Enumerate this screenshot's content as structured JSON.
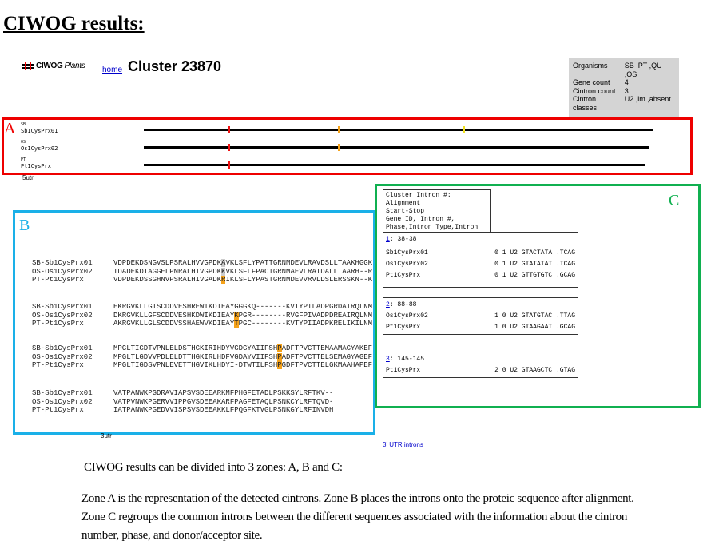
{
  "title": "CIWOG results:",
  "header": {
    "logo_text": "CIWOG",
    "logo_sub": "Plants",
    "home_link": "home",
    "cluster_title": "Cluster 23870"
  },
  "info": [
    {
      "label": "Organisms",
      "value": "SB ,PT ,QU ,OS"
    },
    {
      "label": "Gene count",
      "value": "4"
    },
    {
      "label": "Cintron count",
      "value": "3"
    },
    {
      "label": "Cintron classes",
      "value": "U2 ,im ,absent"
    }
  ],
  "zone_labels": {
    "a": "A",
    "b": "B",
    "c": "C"
  },
  "zoneA": {
    "genes": [
      {
        "org": "SB",
        "name": "Sb1CysPrx01",
        "cintrons": [
          "red",
          "orange",
          "yellow"
        ]
      },
      {
        "org": "OS",
        "name": "Os1CysPrx02",
        "cintrons": [
          "red",
          "orange"
        ]
      },
      {
        "org": "PT",
        "name": "Pt1CysPrx",
        "cintrons": [
          "red"
        ]
      }
    ],
    "colors": {
      "red": "#ee1111",
      "orange": "#f5a21a",
      "yellow": "#f0e020"
    },
    "utr5": "5utr"
  },
  "zoneB": {
    "blocks": [
      {
        "rows": [
          {
            "name": "SB-Sb1CysPrx01",
            "seq": "VDPDEKDSNGVSLPSRALHVVGPDKAVKLSFLYPATTGRNMDEVLRAVDSLLTAAKHGGK",
            "hl": 25,
            "hlc": "gray"
          },
          {
            "name": "OS-Os1CysPrx02",
            "seq": "IDADEKDTAGGELPNRALHIVGPDKKVKLSFLFPACTGRNMAEVLRATDALLTAARH--R",
            "hl": 25,
            "hlc": "gray"
          },
          {
            "name": "PT-Pt1CysPrx",
            "seq": "VDPDEKDSSGHNVPSRALHIVGADKRIKLSFLYPASTGRNMDEVVRVLDSLERSSKN--K",
            "hl": 25,
            "hlc": "orange"
          }
        ]
      },
      {
        "rows": [
          {
            "name": "SB-Sb1CysPrx01",
            "seq": "EKRGVKLLGISCDDVESHREWTKDIEAYGGGKQ-------KVTYPILADPGRDAIRQLNM",
            "hl": -1,
            "hlc": ""
          },
          {
            "name": "OS-Os1CysPrx02",
            "seq": "DKRGVKLLGFSCDDVESHKDWIKDIEAYKPGR--------RVGFPIVADPDREAIRQLNM",
            "hl": 28,
            "hlc": "orange"
          },
          {
            "name": "PT-Pt1CysPrx",
            "seq": "AKRGVKLLGLSCDDVSSHAEWVKDIEAYTPGC--------KVTYPIIADPKRELIKILNM",
            "hl": 28,
            "hlc": "orange"
          }
        ]
      },
      {
        "rows": [
          {
            "name": "SB-Sb1CysPrx01",
            "seq": "MPGLTIGDTVPNLELDSTHGKIRIHDYVGDGYAIIFSHPADFTPVCTTEMAAMAGYAKEF",
            "hl": 38,
            "hlc": "orange"
          },
          {
            "name": "OS-Os1CysPrx02",
            "seq": "MPGLTLGDVVPDLELDTTHGKIRLHDFVGDAYVIIFSHPADFTPVCTTELSEMAGYAGEF",
            "hl": 38,
            "hlc": "orange"
          },
          {
            "name": "PT-Pt1CysPrx",
            "seq": "MPGLTIGDSVPNLEVETTHGVIKLHDYI-DTWTILFSHPGDFTPVCTTELGKMAAHAPEF",
            "hl": 38,
            "hlc": "orange"
          }
        ]
      },
      {
        "rows": [
          {
            "name": "SB-Sb1CysPrx01",
            "seq": "VATPANWKPGDRAVIAPSVSDEEARKMFPHGFETADLPSKKSYLRFTKV--",
            "hl": -1,
            "hlc": ""
          },
          {
            "name": "OS-Os1CysPrx02",
            "seq": "VATPVNWKPGERVVIPPGVSDEEAKARFPAGFETAQLPSNKCYLRFTQVD-",
            "hl": -1,
            "hlc": ""
          },
          {
            "name": "PT-Pt1CysPrx",
            "seq": "IATPANWKPGEDVVISPSVSDEEAKKLFPQGFKTVGLPSNKGYLRFINVDH",
            "hl": -1,
            "hlc": ""
          }
        ]
      }
    ],
    "utr3": "3utr"
  },
  "zoneC": {
    "legend": [
      "Cluster Intron #: Alignment",
      "Start-Stop",
      "Gene ID, Intron #,",
      "Phase,Intron Type,Intron Seq"
    ],
    "introns": [
      {
        "num": "1",
        "range": ": 38-38",
        "rows": [
          {
            "gene": "Sb1CysPrx01",
            "info": "0 1 U2 GTACTATA..TCAG"
          },
          {
            "gene": "Os1CysPrx02",
            "info": "0 1 U2 GTATATAT..TCAG"
          },
          {
            "gene": "Pt1CysPrx",
            "info": "0 1 U2 GTTGTGTC..GCAG"
          }
        ]
      },
      {
        "num": "2",
        "range": ": 88-88",
        "rows": [
          {
            "gene": "Os1CysPrx02",
            "info": "1 0 U2 GTATGTAC..TTAG"
          },
          {
            "gene": "Pt1CysPrx",
            "info": "1 0 U2 GTAAGAAT..GCAG"
          }
        ]
      },
      {
        "num": "3",
        "range": ": 145-145",
        "rows": [
          {
            "gene": "Pt1CysPrx",
            "info": "2 0 U2 GTAAGCTC..GTAG"
          }
        ]
      }
    ],
    "utr3_link": "3' UTR introns"
  },
  "notes": {
    "intro": "CIWOG results can be divided into 3 zones: A, B and C:",
    "body": "Zone A is the representation of the detected cintrons. Zone B places the introns onto the proteic sequence after alignment. Zone C regroups the common introns between the different sequences associated with the information about the cintron number, phase, and donor/acceptor site."
  }
}
